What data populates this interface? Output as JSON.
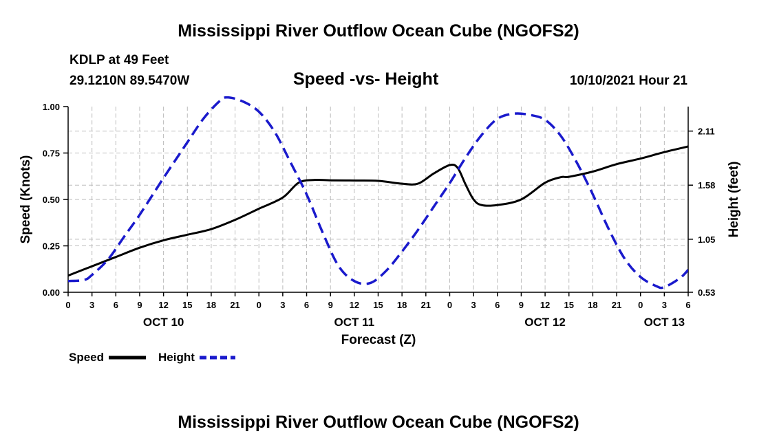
{
  "header": {
    "title": "Mississippi River Outflow Ocean Cube (NGOFS2)",
    "station": "KDLP at 49 Feet",
    "coords": "29.1210N  89.5470W",
    "chart_title": "Speed -vs- Height",
    "timestamp": "10/10/2021 Hour 21"
  },
  "footer": {
    "title": "Mississippi River Outflow Ocean Cube (NGOFS2)"
  },
  "legend": {
    "speed_label": "Speed",
    "height_label": "Height"
  },
  "colors": {
    "speed": "#000000",
    "height": "#1a1acc",
    "grid": "#bbbbbb"
  },
  "chart_data": {
    "type": "line",
    "title": "Speed -vs- Height",
    "xlabel": "Forecast (Z)",
    "ylabel_left": "Speed (Knots)",
    "ylabel_right": "Height (feet)",
    "xlim": [
      0,
      78
    ],
    "ylim_left": [
      0,
      1.0
    ],
    "ylim_right": [
      0.53,
      2.35
    ],
    "x_ticks": [
      0,
      3,
      6,
      9,
      12,
      15,
      18,
      21,
      24,
      27,
      30,
      33,
      36,
      39,
      42,
      45,
      48,
      51,
      54,
      57,
      60,
      63,
      66,
      69,
      72,
      75,
      78
    ],
    "x_tick_labels": [
      "0",
      "3",
      "6",
      "9",
      "12",
      "15",
      "18",
      "21",
      "0",
      "3",
      "6",
      "9",
      "12",
      "15",
      "18",
      "21",
      "0",
      "3",
      "6",
      "9",
      "12",
      "15",
      "18",
      "21",
      "0",
      "3",
      "6"
    ],
    "date_labels": [
      {
        "x": 12,
        "label": "OCT 10"
      },
      {
        "x": 36,
        "label": "OCT 11"
      },
      {
        "x": 60,
        "label": "OCT 12"
      },
      {
        "x": 75,
        "label": "OCT 13"
      }
    ],
    "left_ticks": [
      0.0,
      0.25,
      0.5,
      0.75,
      1.0
    ],
    "left_tick_labels": [
      "0.00",
      "0.25",
      "0.50",
      "0.75",
      "1.00"
    ],
    "right_ticks": [
      0.53,
      1.05,
      1.58,
      2.11
    ],
    "right_tick_labels": [
      "0.53",
      "1.05",
      "1.58",
      "2.11"
    ],
    "grid": true,
    "series": [
      {
        "name": "Speed",
        "axis": "left",
        "style": "solid",
        "x": [
          0,
          3,
          6,
          9,
          12,
          15,
          18,
          21,
          24,
          27,
          29,
          31,
          33,
          36,
          39,
          42,
          44,
          46,
          48,
          49,
          50,
          51,
          52,
          54,
          57,
          60,
          62,
          63,
          66,
          69,
          72,
          75,
          78
        ],
        "values": [
          0.09,
          0.14,
          0.19,
          0.24,
          0.28,
          0.31,
          0.34,
          0.39,
          0.45,
          0.51,
          0.59,
          0.605,
          0.603,
          0.602,
          0.6,
          0.585,
          0.585,
          0.64,
          0.685,
          0.67,
          0.58,
          0.5,
          0.47,
          0.47,
          0.5,
          0.59,
          0.62,
          0.622,
          0.65,
          0.69,
          0.72,
          0.755,
          0.785
        ]
      },
      {
        "name": "Height",
        "axis": "right",
        "style": "dashed",
        "x": [
          0,
          2,
          3,
          5,
          7,
          9,
          12,
          15,
          17,
          19,
          20,
          22,
          24,
          26,
          28,
          30,
          32,
          34,
          36,
          38,
          40,
          42,
          44,
          46,
          48,
          50,
          52,
          54,
          56,
          58,
          60,
          62,
          64,
          66,
          68,
          70,
          72,
          74,
          75,
          77,
          78
        ],
        "values": [
          0.64,
          0.65,
          0.7,
          0.85,
          1.07,
          1.29,
          1.65,
          2.0,
          2.23,
          2.4,
          2.44,
          2.4,
          2.3,
          2.1,
          1.8,
          1.49,
          1.12,
          0.79,
          0.64,
          0.62,
          0.74,
          0.93,
          1.14,
          1.37,
          1.6,
          1.85,
          2.07,
          2.23,
          2.28,
          2.27,
          2.22,
          2.06,
          1.8,
          1.49,
          1.15,
          0.86,
          0.68,
          0.59,
          0.58,
          0.67,
          0.75
        ]
      }
    ]
  }
}
